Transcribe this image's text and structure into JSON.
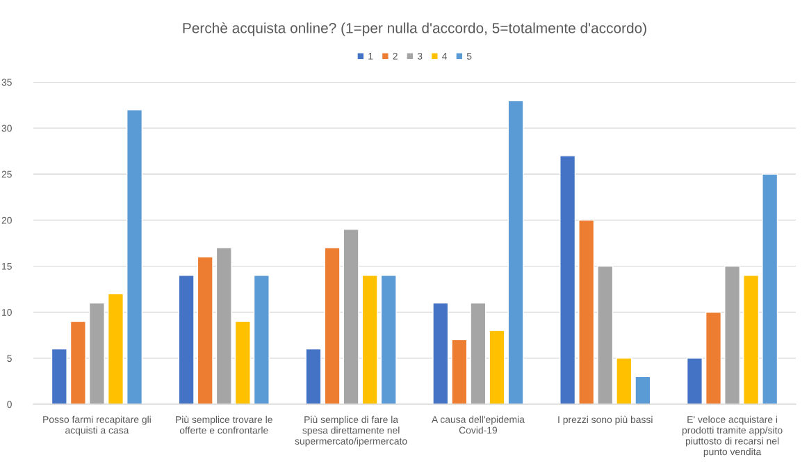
{
  "chart_data": {
    "type": "bar",
    "title": "Perchè acquista online? (1=per nulla d'accordo, 5=totalmente d'accordo)",
    "categories": [
      "Posso farmi recapitare gli\nacquisti a casa",
      "Più semplice trovare le\nofferte e confrontarle",
      "Più semplice di fare la\nspesa direttamente nel\nsupermercato/ipermercato",
      "A causa dell'epidemia\nCovid-19",
      "I prezzi sono più bassi",
      "E' veloce acquistare i\nprodotti tramite app/sito\npiuttosto di recarsi nel\npunto vendita"
    ],
    "series": [
      {
        "name": "1",
        "color": "#4472c4",
        "values": [
          6,
          14,
          6,
          11,
          27,
          5
        ]
      },
      {
        "name": "2",
        "color": "#ed7d31",
        "values": [
          9,
          16,
          17,
          7,
          20,
          10
        ]
      },
      {
        "name": "3",
        "color": "#a5a5a5",
        "values": [
          11,
          17,
          19,
          11,
          15,
          15
        ]
      },
      {
        "name": "4",
        "color": "#ffc000",
        "values": [
          12,
          9,
          14,
          8,
          5,
          14
        ]
      },
      {
        "name": "5",
        "color": "#5b9bd5",
        "values": [
          32,
          14,
          14,
          33,
          3,
          25
        ]
      }
    ],
    "ylim": [
      0,
      35
    ],
    "yticks": [
      0,
      5,
      10,
      15,
      20,
      25,
      30,
      35
    ],
    "grid": "y",
    "legend": "top"
  }
}
